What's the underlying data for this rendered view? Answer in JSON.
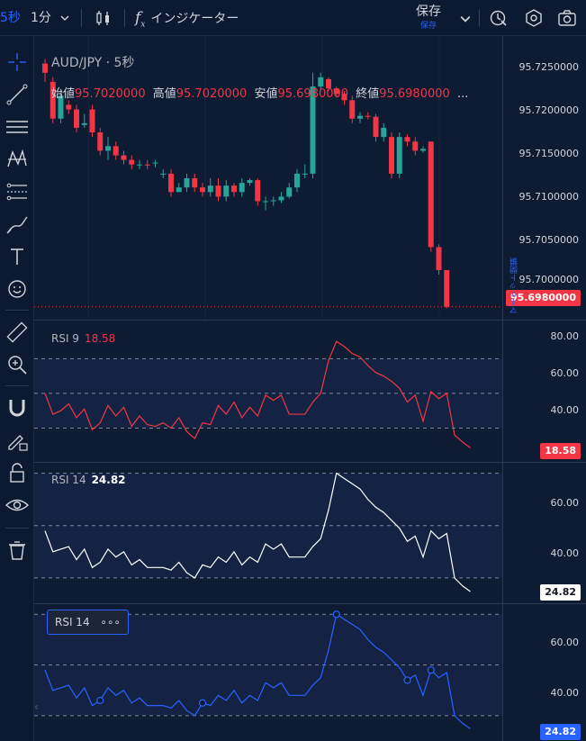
{
  "toolbar": {
    "interval_current": "5秒",
    "interval_alt": "1分",
    "indicators_label": "インジケーター",
    "save_label": "保存",
    "save_sub": "保存"
  },
  "sidebar": {
    "tools": [
      "crosshair-icon",
      "trend-line-icon",
      "fib-icon",
      "pattern-icon",
      "channel-icon",
      "brush-icon",
      "text-icon",
      "emoji-icon",
      "ruler-icon",
      "zoom-in-icon",
      "magnet-icon",
      "lock-pencil-icon",
      "lock-icon",
      "eye-icon",
      "trash-icon"
    ]
  },
  "main": {
    "symbol_title": "AUD/JPY · 5秒",
    "ohlc": [
      {
        "k": "始値",
        "v": "95.7020000"
      },
      {
        "k": "高値",
        "v": "95.7020000"
      },
      {
        "k": "安値",
        "v": "95.6980000"
      },
      {
        "k": "終値",
        "v": "95.6980000"
      }
    ],
    "ohlc_more": "...",
    "price_ticks": [
      "95.7250000",
      "95.7200000",
      "95.7150000",
      "95.7100000",
      "95.7050000",
      "95.7000000"
    ],
    "last_price": "95.6980000",
    "market_status": "マーケット閉鎖",
    "colors": {
      "up": "#26a69a",
      "down": "#f23645",
      "bg": "#0d1b33"
    }
  },
  "rsi9": {
    "label": "RSI 9",
    "value": "18.58",
    "ticks": [
      "80.00",
      "60.00",
      "40.00"
    ],
    "color": "#f23645"
  },
  "rsi14a": {
    "label": "RSI 14",
    "value": "24.82",
    "ticks": [
      "60.00",
      "40.00"
    ],
    "color": "#ffffff"
  },
  "rsi14b": {
    "label": "RSI 14",
    "value": "24.82",
    "ticks": [
      "60.00",
      "40.00"
    ],
    "color": "#2962ff",
    "more": "∘∘∘"
  },
  "chart_data": [
    {
      "type": "candlestick",
      "title": "AUD/JPY · 5秒",
      "ylim": [
        95.6965,
        95.7275
      ],
      "candles": [
        [
          95.7245,
          95.7235,
          95.725,
          95.7225
        ],
        [
          95.7225,
          95.7185,
          95.723,
          95.718
        ],
        [
          95.7185,
          95.721,
          95.7215,
          95.718
        ],
        [
          95.72,
          95.7195,
          95.7205,
          95.719
        ],
        [
          95.7195,
          95.7175,
          95.72,
          95.717
        ],
        [
          95.7178,
          95.718,
          95.719,
          95.7175
        ],
        [
          95.7195,
          95.717,
          95.72,
          95.7165
        ],
        [
          95.717,
          95.715,
          95.7175,
          95.7145
        ],
        [
          95.715,
          95.7155,
          95.7165,
          95.714
        ],
        [
          95.7155,
          95.7145,
          95.716,
          95.714
        ],
        [
          95.7145,
          95.714,
          95.715,
          95.7135
        ],
        [
          95.714,
          95.7135,
          95.7145,
          95.713
        ],
        [
          95.7135,
          95.7135,
          95.714,
          95.713
        ],
        [
          95.7135,
          95.7134,
          95.714,
          95.713
        ],
        [
          95.7136,
          95.7137,
          95.714,
          95.7132
        ],
        [
          95.7125,
          95.7125,
          95.713,
          95.712
        ],
        [
          95.7125,
          95.7105,
          95.713,
          95.71
        ],
        [
          95.7105,
          95.711,
          95.7115,
          95.7105
        ],
        [
          95.711,
          95.712,
          95.7125,
          95.7105
        ],
        [
          95.712,
          95.711,
          95.7125,
          95.7105
        ],
        [
          95.711,
          95.7105,
          95.7115,
          95.71
        ],
        [
          95.7105,
          95.7112,
          95.712,
          95.71
        ],
        [
          95.7112,
          95.71,
          95.712,
          95.7095
        ],
        [
          95.71,
          95.7112,
          95.7118,
          95.7095
        ],
        [
          95.7112,
          95.7105,
          95.7115,
          95.71
        ],
        [
          95.7105,
          95.7115,
          95.712,
          95.71
        ],
        [
          95.7115,
          95.7118,
          95.712,
          95.7112
        ],
        [
          95.7118,
          95.7095,
          95.712,
          95.709
        ],
        [
          95.7095,
          95.7095,
          95.71,
          95.7085
        ],
        [
          95.7095,
          95.7096,
          95.71,
          95.709
        ],
        [
          95.7096,
          95.71,
          95.7105,
          95.7093
        ],
        [
          95.71,
          95.711,
          95.7115,
          95.7098
        ],
        [
          95.711,
          95.7125,
          95.713,
          95.7105
        ],
        [
          95.7125,
          95.7125,
          95.7135,
          95.712
        ],
        [
          95.7125,
          95.722,
          95.7235,
          95.712
        ],
        [
          95.722,
          95.723,
          95.7235,
          95.7215
        ],
        [
          95.7228,
          95.7218,
          95.723,
          95.7215
        ],
        [
          95.7218,
          95.7212,
          95.722,
          95.7208
        ],
        [
          95.7212,
          95.7205,
          95.7215,
          95.72
        ],
        [
          95.7205,
          95.7185,
          95.721,
          95.718
        ],
        [
          95.7185,
          95.7188,
          95.7192,
          95.718
        ],
        [
          95.7188,
          95.7187,
          95.7192,
          95.7184
        ],
        [
          95.7187,
          95.7165,
          95.719,
          95.716
        ],
        [
          95.7165,
          95.7175,
          95.718,
          95.716
        ],
        [
          95.7165,
          95.7125,
          95.717,
          95.712
        ],
        [
          95.7125,
          95.7165,
          95.717,
          95.712
        ],
        [
          95.7165,
          95.716,
          95.7168,
          95.7155
        ],
        [
          95.716,
          95.715,
          95.7165,
          95.7145
        ],
        [
          95.715,
          95.7152,
          95.7155,
          95.7148
        ],
        [
          95.716,
          95.7045,
          95.716,
          95.704
        ],
        [
          95.7045,
          95.702,
          95.7048,
          95.7015
        ],
        [
          95.702,
          95.698,
          95.702,
          95.6978
        ]
      ]
    },
    {
      "type": "line",
      "title": "RSI 9",
      "ylim": [
        10,
        92
      ],
      "ticks": [
        80,
        60,
        40
      ],
      "bands": [
        70,
        50,
        30
      ],
      "values": [
        50,
        38,
        40,
        44,
        36,
        41,
        29,
        33,
        43,
        37,
        42,
        31,
        37,
        32,
        31,
        33,
        30,
        36,
        28,
        24,
        33,
        32,
        43,
        38,
        45,
        36,
        42,
        37,
        49,
        46,
        49,
        38,
        38,
        38,
        45,
        50,
        69,
        80,
        77,
        73,
        71,
        66,
        62,
        60,
        57,
        53,
        45,
        49,
        34,
        51,
        47,
        50,
        26,
        22,
        18.58
      ]
    },
    {
      "type": "line",
      "title": "RSI 14",
      "ylim": [
        20,
        74
      ],
      "ticks": [
        60,
        40
      ],
      "bands": [
        70,
        50,
        30
      ],
      "values": [
        48,
        40,
        41,
        42,
        37,
        41,
        34,
        36,
        41,
        38,
        40,
        35,
        37,
        34,
        34,
        34,
        33,
        36,
        32,
        30,
        35,
        34,
        38,
        36,
        40,
        35,
        38,
        36,
        43,
        41,
        43,
        38,
        38,
        38,
        42,
        45,
        56,
        70,
        68,
        66,
        64,
        60,
        57,
        55,
        52,
        49,
        44,
        46,
        38,
        48,
        45,
        47,
        30,
        27,
        24.82
      ]
    },
    {
      "type": "line",
      "title": "RSI 14",
      "ylim": [
        20,
        74
      ],
      "ticks": [
        60,
        40
      ],
      "bands": [
        70,
        50,
        30
      ],
      "values": [
        48,
        40,
        41,
        42,
        37,
        41,
        34,
        36,
        41,
        38,
        40,
        35,
        37,
        34,
        34,
        34,
        33,
        36,
        32,
        30,
        35,
        34,
        38,
        36,
        40,
        35,
        38,
        36,
        43,
        41,
        43,
        38,
        38,
        38,
        42,
        45,
        56,
        70,
        68,
        66,
        64,
        60,
        57,
        55,
        52,
        49,
        44,
        46,
        38,
        48,
        45,
        47,
        30,
        27,
        24.82
      ]
    }
  ]
}
